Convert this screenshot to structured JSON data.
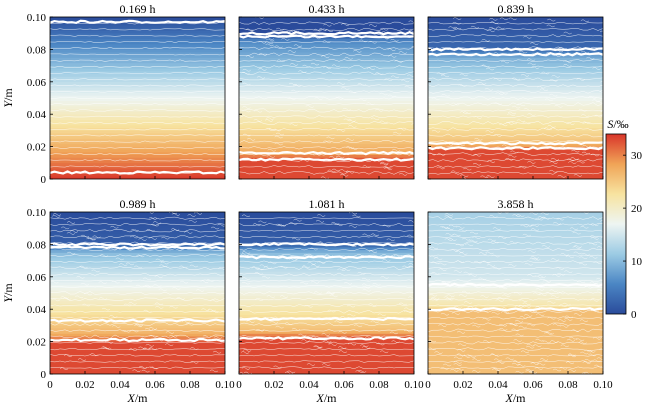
{
  "figure": {
    "x_axis_label_var": "X",
    "x_axis_label_unit": "/m",
    "y_axis_label_var": "Y",
    "y_axis_label_unit": "/m",
    "colorbar_label_var": "S",
    "colorbar_label_unit": "/‰"
  },
  "chart_data": {
    "type": "heatmap",
    "colormap": [
      "#2a4b9b",
      "#4b86c4",
      "#9ccbe4",
      "#eef5f2",
      "#f7e3a0",
      "#f0a457",
      "#d9352a"
    ],
    "xlim": [
      0,
      0.1
    ],
    "ylim": [
      0,
      0.1
    ],
    "x_ticks": [
      "0",
      "0.02",
      "0.04",
      "0.06",
      "0.08",
      "0.10"
    ],
    "y_ticks": [
      "0",
      "0.02",
      "0.04",
      "0.06",
      "0.08",
      "0.10"
    ],
    "colorbar": {
      "range": [
        0,
        34
      ],
      "ticks": [
        "0",
        "10",
        "20",
        "30"
      ],
      "tick_values": [
        0,
        10,
        20,
        30
      ]
    },
    "panels": [
      {
        "title": "0.169 h",
        "profile": [
          [
            0,
            34
          ],
          [
            0.1,
            0
          ]
        ],
        "interfaces": [
          0.004,
          0.097
        ]
      },
      {
        "title": "0.433 h",
        "profile": [
          [
            0,
            33
          ],
          [
            0.012,
            33
          ],
          [
            0.016,
            28
          ],
          [
            0.085,
            6
          ],
          [
            0.09,
            0
          ],
          [
            0.1,
            0
          ]
        ],
        "interfaces": [
          0.012,
          0.016,
          0.088,
          0.09
        ]
      },
      {
        "title": "0.839 h",
        "profile": [
          [
            0,
            33
          ],
          [
            0.018,
            33
          ],
          [
            0.022,
            26
          ],
          [
            0.075,
            9
          ],
          [
            0.08,
            3
          ],
          [
            0.1,
            0
          ]
        ],
        "interfaces": [
          0.019,
          0.022,
          0.077,
          0.08
        ]
      },
      {
        "title": "0.989 h",
        "profile": [
          [
            0,
            33
          ],
          [
            0.02,
            33
          ],
          [
            0.025,
            27
          ],
          [
            0.075,
            10
          ],
          [
            0.08,
            2
          ],
          [
            0.1,
            0
          ]
        ],
        "interfaces": [
          0.021,
          0.033,
          0.078,
          0.08
        ]
      },
      {
        "title": "1.081 h",
        "profile": [
          [
            0,
            33
          ],
          [
            0.022,
            33
          ],
          [
            0.027,
            26
          ],
          [
            0.075,
            10
          ],
          [
            0.08,
            2
          ],
          [
            0.1,
            0
          ]
        ],
        "interfaces": [
          0.022,
          0.034,
          0.072,
          0.08
        ]
      },
      {
        "title": "3.858 h",
        "profile": [
          [
            0,
            26
          ],
          [
            0.039,
            26
          ],
          [
            0.042,
            22
          ],
          [
            0.06,
            15
          ],
          [
            0.1,
            12
          ]
        ],
        "interfaces": [
          0.04,
          0.055
        ]
      }
    ]
  }
}
